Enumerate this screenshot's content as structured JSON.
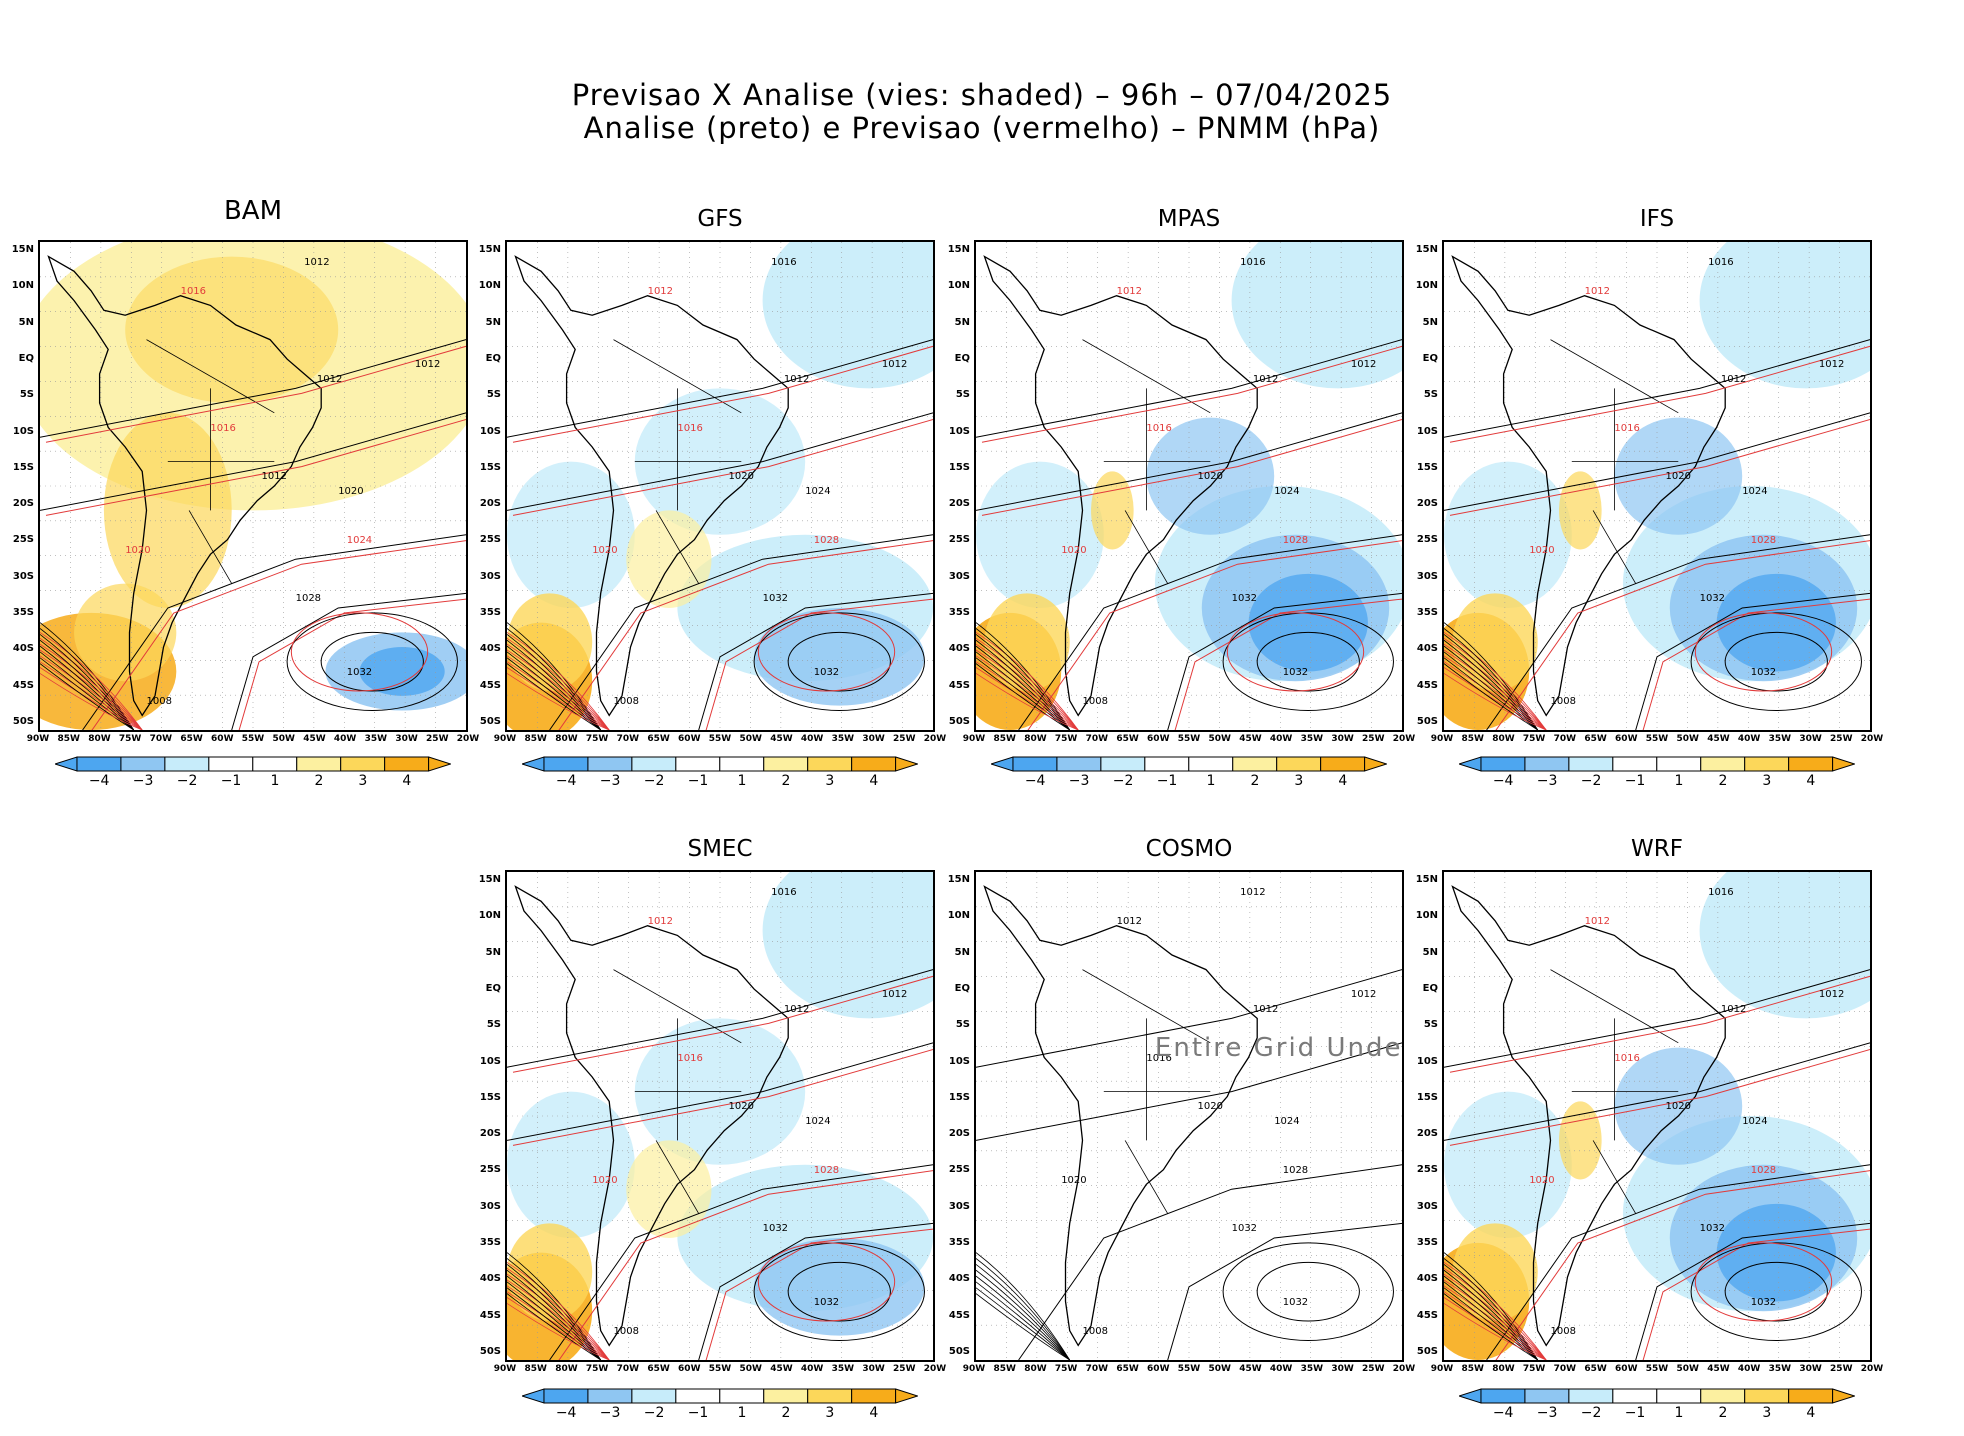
{
  "header": {
    "title_line1": "Previsao X Analise (vies: shaded) – 96h – 07/04/2025",
    "title_line2": "Analise (preto) e Previsao (vermelho) – PNMM (hPa)"
  },
  "colors": {
    "bias_neg4": "#4da6f0",
    "bias_neg3": "#8fc6f2",
    "bias_neg2": "#c7ecfa",
    "bias_neg1": "#ffffff",
    "bias_pos1": "#ffffff",
    "bias_pos2": "#fcf0a0",
    "bias_pos3": "#fcd75a",
    "bias_pos4": "#f7ac1a",
    "analysis_contour": "#000000",
    "forecast_contour": "#e23b3b"
  },
  "axes": {
    "lat_labels": [
      "15N",
      "10N",
      "5N",
      "EQ",
      "5S",
      "10S",
      "15S",
      "20S",
      "25S",
      "30S",
      "35S",
      "40S",
      "45S",
      "50S"
    ],
    "lon_labels": [
      "90W",
      "85W",
      "80W",
      "75W",
      "70W",
      "65W",
      "60W",
      "55W",
      "50W",
      "45W",
      "40W",
      "35W",
      "30W",
      "25W",
      "20W"
    ]
  },
  "colorbar": {
    "labels": [
      "−4",
      "−3",
      "−2",
      "−1",
      "1",
      "2",
      "3",
      "4"
    ]
  },
  "panels": [
    {
      "name": "BAM",
      "shading": "warm",
      "contours": [
        "1012",
        "1016",
        "1012",
        "1012",
        "1016",
        "1012",
        "1020",
        "1024",
        "1028",
        "1032",
        "1020",
        "1008"
      ]
    },
    {
      "name": "GFS",
      "shading": "mixed",
      "contours": [
        "1016",
        "1012",
        "1012",
        "1012",
        "1016",
        "1020",
        "1024",
        "1028",
        "1032",
        "1032",
        "1020",
        "1008"
      ]
    },
    {
      "name": "MPAS",
      "shading": "cool",
      "contours": [
        "1016",
        "1012",
        "1012",
        "1012",
        "1016",
        "1020",
        "1024",
        "1028",
        "1032",
        "1032",
        "1020",
        "1008"
      ]
    },
    {
      "name": "IFS",
      "shading": "cool",
      "contours": [
        "1016",
        "1012",
        "1012",
        "1012",
        "1016",
        "1020",
        "1024",
        "1028",
        "1032",
        "1032",
        "1020",
        "1008"
      ]
    },
    {
      "name": "SMEC",
      "shading": "mixed",
      "contours": [
        "1016",
        "1012",
        "1012",
        "1012",
        "1016",
        "1020",
        "1024",
        "1028",
        "1032",
        "1032",
        "1020",
        "1008"
      ]
    },
    {
      "name": "COSMO",
      "shading": "none",
      "contours": [
        "1012",
        "1012",
        "1012",
        "1012",
        "1016",
        "1020",
        "1024",
        "1028",
        "1032",
        "1032",
        "1020",
        "1008"
      ],
      "watermark": "Entire Grid Undef"
    },
    {
      "name": "WRF",
      "shading": "cool",
      "contours": [
        "1016",
        "1012",
        "1012",
        "1012",
        "1016",
        "1020",
        "1024",
        "1028",
        "1032",
        "1032",
        "1020",
        "1008"
      ]
    }
  ]
}
